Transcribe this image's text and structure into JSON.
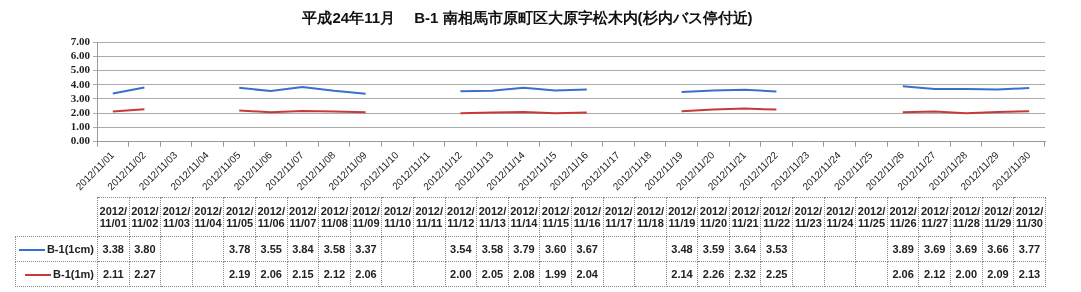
{
  "chart_data": {
    "type": "line",
    "title": "平成24年11月　 B-1 南相馬市原町区大原字松木内(杉内バス停付近)",
    "categories": [
      "2012/11/01",
      "2012/11/02",
      "2012/11/03",
      "2012/11/04",
      "2012/11/05",
      "2012/11/06",
      "2012/11/07",
      "2012/11/08",
      "2012/11/09",
      "2012/11/10",
      "2012/11/11",
      "2012/11/12",
      "2012/11/13",
      "2012/11/14",
      "2012/11/15",
      "2012/11/16",
      "2012/11/17",
      "2012/11/18",
      "2012/11/19",
      "2012/11/20",
      "2012/11/21",
      "2012/11/22",
      "2012/11/23",
      "2012/11/24",
      "2012/11/25",
      "2012/11/26",
      "2012/11/27",
      "2012/11/28",
      "2012/11/29",
      "2012/11/30"
    ],
    "series": [
      {
        "name": "B-1(1cm)",
        "color": "#3a6fcc",
        "values": [
          3.38,
          3.8,
          null,
          null,
          3.78,
          3.55,
          3.84,
          3.58,
          3.37,
          null,
          null,
          3.54,
          3.58,
          3.79,
          3.6,
          3.67,
          null,
          null,
          3.48,
          3.59,
          3.64,
          3.53,
          null,
          null,
          null,
          3.89,
          3.69,
          3.69,
          3.66,
          3.77
        ],
        "value_labels": [
          "3.38",
          "3.80",
          null,
          null,
          "3.78",
          "3.55",
          "3.84",
          "3.58",
          "3.37",
          null,
          null,
          "3.54",
          "3.58",
          "3.79",
          "3.60",
          "3.67",
          null,
          null,
          "3.48",
          "3.59",
          "3.64",
          "3.53",
          null,
          null,
          null,
          "3.89",
          "3.69",
          "3.69",
          "3.66",
          "3.77"
        ]
      },
      {
        "name": "B-1(1m)",
        "color": "#c83a3a",
        "values": [
          2.11,
          2.27,
          null,
          null,
          2.19,
          2.06,
          2.15,
          2.12,
          2.06,
          null,
          null,
          2.0,
          2.05,
          2.08,
          1.99,
          2.04,
          null,
          null,
          2.14,
          2.26,
          2.32,
          2.25,
          null,
          null,
          null,
          2.06,
          2.12,
          2.0,
          2.09,
          2.13
        ],
        "value_labels": [
          "2.11",
          "2.27",
          null,
          null,
          "2.19",
          "2.06",
          "2.15",
          "2.12",
          "2.06",
          null,
          null,
          "2.00",
          "2.05",
          "2.08",
          "1.99",
          "2.04",
          null,
          null,
          "2.14",
          "2.26",
          "2.32",
          "2.25",
          null,
          null,
          null,
          "2.06",
          "2.12",
          "2.00",
          "2.09",
          "2.13"
        ]
      }
    ],
    "ylim": [
      0,
      7
    ],
    "yticks": [
      {
        "value": 0,
        "label": "0.00"
      },
      {
        "value": 1,
        "label": "1.00"
      },
      {
        "value": 2,
        "label": "2.00"
      },
      {
        "value": 3,
        "label": "3.00"
      },
      {
        "value": 4,
        "label": "4.00"
      },
      {
        "value": 5,
        "label": "5.00"
      },
      {
        "value": 6,
        "label": "6.00"
      },
      {
        "value": 7,
        "label": "7.00"
      }
    ],
    "grid": "y",
    "legend": "bottom",
    "marker": "none",
    "line_style": "solid"
  }
}
